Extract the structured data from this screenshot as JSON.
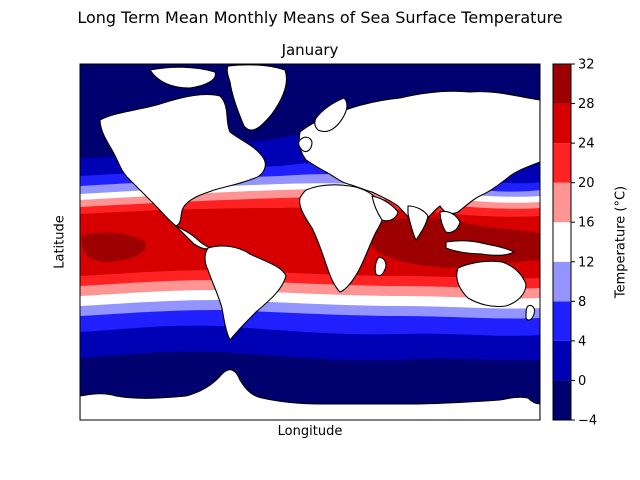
{
  "chart_data": {
    "type": "heatmap",
    "suptitle": "Long Term Mean Monthly Means of Sea Surface Temperature",
    "title": "January",
    "xlabel": "Longitude",
    "ylabel": "Latitude",
    "colorbar": {
      "label": "Temperature (°C)",
      "ticks": [
        -4,
        0,
        4,
        8,
        12,
        16,
        20,
        24,
        28,
        32
      ],
      "levels": [
        {
          "min": -4,
          "max": 0,
          "color": "#00006e"
        },
        {
          "min": 0,
          "max": 4,
          "color": "#0000b4"
        },
        {
          "min": 4,
          "max": 8,
          "color": "#2020ff"
        },
        {
          "min": 8,
          "max": 12,
          "color": "#9494ff"
        },
        {
          "min": 12,
          "max": 16,
          "color": "#ffffff"
        },
        {
          "min": 16,
          "max": 20,
          "color": "#ff9494"
        },
        {
          "min": 20,
          "max": 24,
          "color": "#ff2222"
        },
        {
          "min": 24,
          "max": 28,
          "color": "#d60000"
        },
        {
          "min": 28,
          "max": 32,
          "color": "#9c0000"
        }
      ]
    },
    "land_color": "#ffffff",
    "coastline_color": "#000000"
  }
}
